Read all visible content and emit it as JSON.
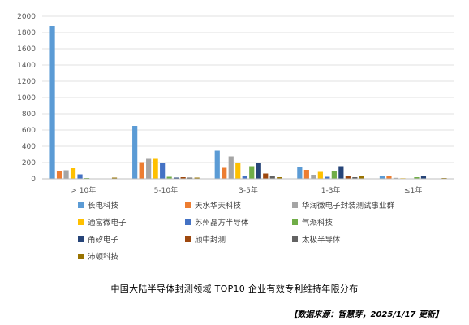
{
  "chart_data": {
    "type": "bar",
    "title": "中国大陆半导体封测领域 TOP10 企业有效专利维持年限分布",
    "categories": [
      "> 10年",
      "5-10年",
      "3-5年",
      "1-3年",
      "≤1年"
    ],
    "ylim": [
      0,
      2000
    ],
    "yticks": [
      "0",
      "200",
      "400",
      "600",
      "800",
      "1000",
      "1200",
      "1400",
      "1600",
      "1800",
      "2000"
    ],
    "grid": true,
    "legend_position": "bottom",
    "series": [
      {
        "name": "长电科技",
        "color": "#5B9BD5",
        "values": [
          1880,
          650,
          345,
          150,
          35
        ]
      },
      {
        "name": "天水华天科技",
        "color": "#ED7D31",
        "values": [
          95,
          205,
          135,
          110,
          30
        ]
      },
      {
        "name": "华润微电子封装测试事业群",
        "color": "#A5A5A5",
        "values": [
          105,
          245,
          275,
          50,
          12
        ]
      },
      {
        "name": "通富微电子",
        "color": "#FFC000",
        "values": [
          130,
          245,
          200,
          85,
          8
        ]
      },
      {
        "name": "苏州晶方半导体",
        "color": "#4472C4",
        "values": [
          55,
          200,
          35,
          25,
          5
        ]
      },
      {
        "name": "气派科技",
        "color": "#70AD47",
        "values": [
          10,
          25,
          155,
          95,
          20
        ]
      },
      {
        "name": "甬矽电子",
        "color": "#264478",
        "values": [
          2,
          15,
          190,
          155,
          40
        ]
      },
      {
        "name": "颀中封测",
        "color": "#9E480E",
        "values": [
          5,
          20,
          65,
          35,
          5
        ]
      },
      {
        "name": "太极半导体",
        "color": "#636363",
        "values": [
          3,
          15,
          30,
          20,
          3
        ]
      },
      {
        "name": "沛顿科技",
        "color": "#997300",
        "values": [
          15,
          15,
          20,
          40,
          10
        ]
      }
    ]
  },
  "caption": "中国大陆半导体封测领域 TOP10 企业有效专利维持年限分布",
  "source": "【数据来源：智慧芽，2025/1/17 更新】"
}
